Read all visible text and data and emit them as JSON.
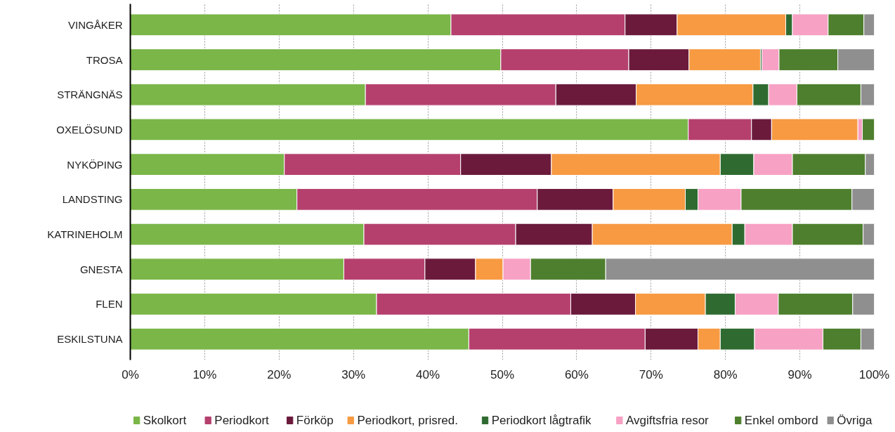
{
  "chart_data": {
    "type": "bar",
    "orientation": "horizontal",
    "stacked": true,
    "categories": [
      "VINGÅKER",
      "TROSA",
      "STRÄNGNÄS",
      "OXELÖSUND",
      "NYKÖPING",
      "LANDSTING",
      "KATRINEHOLM",
      "GNESTA",
      "FLEN",
      "ESKILSTUNA"
    ],
    "series": [
      {
        "name": "Skolkort",
        "color": "#7ab648",
        "values": [
          43.1,
          49.8,
          31.6,
          75.0,
          20.7,
          22.4,
          31.4,
          28.7,
          33.1,
          45.5
        ]
      },
      {
        "name": "Periodkort",
        "color": "#b5406e",
        "values": [
          23.4,
          17.2,
          25.6,
          8.5,
          23.7,
          32.3,
          20.4,
          10.9,
          26.1,
          23.7
        ]
      },
      {
        "name": "Förköp",
        "color": "#6b1a3c",
        "values": [
          7.0,
          8.1,
          10.8,
          2.7,
          12.2,
          10.2,
          10.3,
          6.8,
          8.7,
          7.1
        ]
      },
      {
        "name": "Periodkort, prisred.",
        "color": "#f79a42",
        "values": [
          14.6,
          9.6,
          15.7,
          11.6,
          22.7,
          9.7,
          18.8,
          3.7,
          9.4,
          3.0
        ]
      },
      {
        "name": "Periodkort lågtrafik",
        "color": "#2f6b30",
        "values": [
          0.9,
          0.2,
          2.1,
          0,
          4.5,
          1.7,
          1.7,
          0,
          4.0,
          4.6
        ]
      },
      {
        "name": "Avgiftsfria resor",
        "color": "#f7a1c4",
        "values": [
          4.8,
          2.3,
          3.8,
          0.6,
          5.2,
          5.8,
          6.4,
          3.7,
          5.8,
          9.2
        ]
      },
      {
        "name": "Enkel ombord",
        "color": "#4e7f2e",
        "values": [
          4.8,
          7.9,
          8.6,
          1.6,
          9.8,
          14.9,
          9.5,
          10.1,
          10.0,
          5.1
        ]
      },
      {
        "name": "Övriga",
        "color": "#8f8f8f",
        "values": [
          1.4,
          4.9,
          1.8,
          0,
          1.2,
          3.0,
          1.5,
          36.1,
          2.9,
          1.8
        ]
      }
    ],
    "xlim": [
      0,
      100
    ],
    "xticks": [
      {
        "value": 0,
        "label": "0%"
      },
      {
        "value": 10,
        "label": "10%"
      },
      {
        "value": 20,
        "label": "20%"
      },
      {
        "value": 30,
        "label": "30%"
      },
      {
        "value": 40,
        "label": "40%"
      },
      {
        "value": 50,
        "label": "50%"
      },
      {
        "value": 60,
        "label": "60%"
      },
      {
        "value": 70,
        "label": "70%"
      },
      {
        "value": 80,
        "label": "80%"
      },
      {
        "value": 90,
        "label": "90%"
      },
      {
        "value": 100,
        "label": "100%"
      }
    ],
    "grid": "x",
    "legend": "bottom"
  }
}
